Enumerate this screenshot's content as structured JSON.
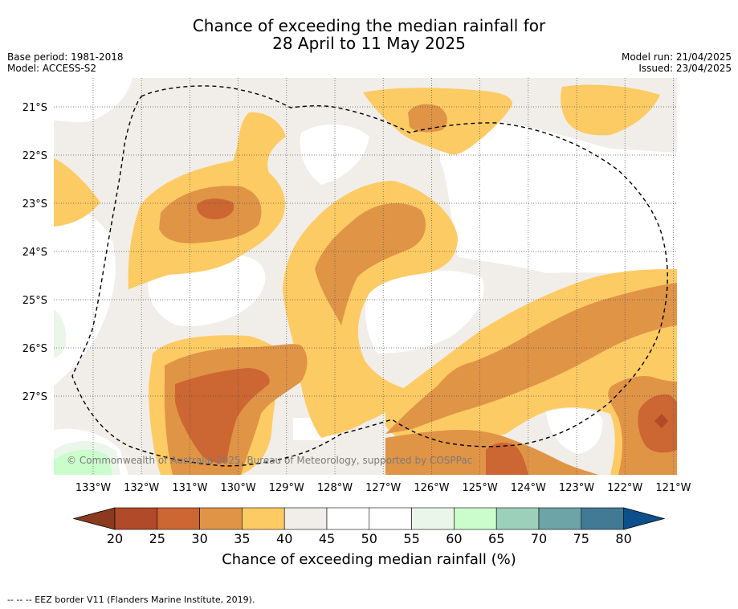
{
  "header": {
    "title_line1": "Chance of exceeding the median rainfall for",
    "title_line2": "28 April to 11 May 2025",
    "base_period": "Base period: 1981-2018",
    "model": "Model: ACCESS-S2",
    "model_run": "Model run: 21/04/2025",
    "issued": "Issued: 23/04/2025"
  },
  "map": {
    "lon_labels": [
      "133°W",
      "132°W",
      "131°W",
      "130°W",
      "129°W",
      "128°W",
      "127°W",
      "126°W",
      "125°W",
      "124°W",
      "123°W",
      "122°W",
      "121°W"
    ],
    "lat_labels": [
      "21°S",
      "22°S",
      "23°S",
      "24°S",
      "25°S",
      "26°S",
      "27°S"
    ],
    "copyright": "© Commonwealth of Australia 2025, Bureau of Meteorology, supported by COSPPac",
    "colors": {
      "c20_25": "#b04a29",
      "c25_30": "#cc6633",
      "c30_35": "#e09446",
      "c35_40": "#fdcb64",
      "c40_45": "#f1ede8",
      "c45_55": "#ffffff",
      "c55_60": "#e9f6e9",
      "c60_65": "#cbfccb"
    }
  },
  "colorbar": {
    "ticks": [
      "20",
      "25",
      "30",
      "35",
      "40",
      "45",
      "50",
      "55",
      "60",
      "65",
      "70",
      "75",
      "80"
    ],
    "colors": [
      "#b04a29",
      "#cc6633",
      "#e09446",
      "#fdcb64",
      "#f1ede8",
      "#ffffff",
      "#ffffff",
      "#e9f6e9",
      "#cbfccb",
      "#9dd0bb",
      "#6da4a8",
      "#427a96"
    ],
    "under_color": "#8b3a1f",
    "over_color": "#0d4f8b",
    "title": "Chance of exceeding median rainfall (%)"
  },
  "footer": {
    "legend": "-- -- -- EEZ border V11 (Flanders Marine Institute, 2019)."
  }
}
